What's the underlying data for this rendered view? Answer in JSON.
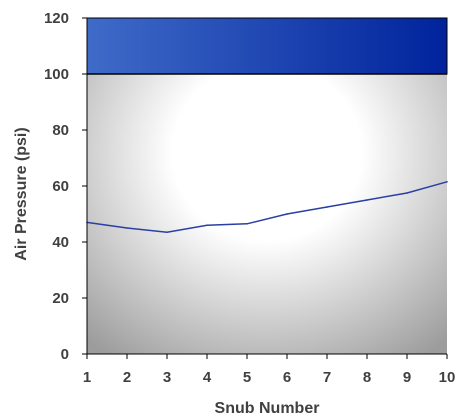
{
  "chart_data": {
    "type": "line",
    "title": "",
    "xlabel": "Snub Number",
    "ylabel": "Air Pressure (psi)",
    "x": [
      1,
      2,
      3,
      4,
      5,
      6,
      7,
      8,
      9,
      10
    ],
    "xlim": [
      1,
      10
    ],
    "ylim": [
      0,
      120
    ],
    "y_ticks": [
      0,
      20,
      40,
      60,
      80,
      100,
      120
    ],
    "x_ticks": [
      1,
      2,
      3,
      4,
      5,
      6,
      7,
      8,
      9,
      10
    ],
    "series": [
      {
        "values": [
          47,
          45,
          43.5,
          46,
          46.5,
          50,
          52.5,
          55,
          57.5,
          61.5
        ]
      }
    ],
    "band": {
      "from": 100,
      "to": 120
    },
    "grid": false,
    "legend": "none",
    "colors": {
      "line": "#2a3fa6",
      "band_dark": "#00239c",
      "band_light": "#3f6bc8",
      "plot_center": "#ffffff",
      "plot_edge": "#9c9c9c",
      "text": "#404040",
      "axis": "#000000"
    }
  }
}
